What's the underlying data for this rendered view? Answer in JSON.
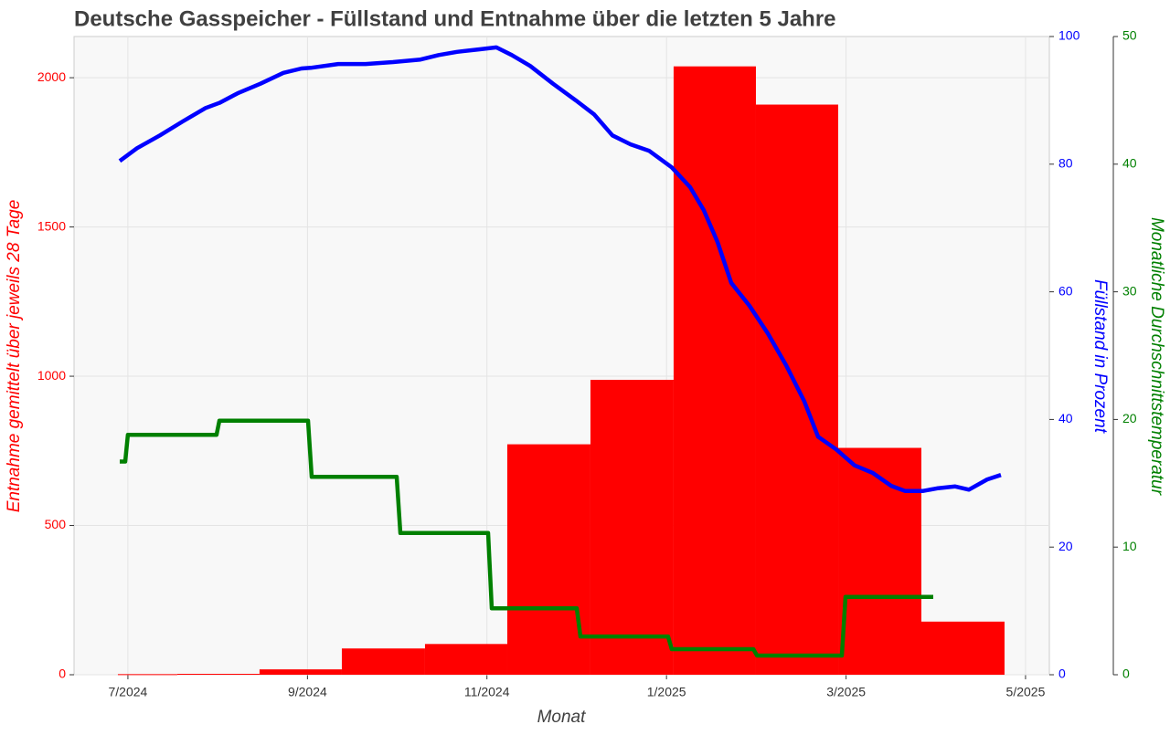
{
  "chart_data": {
    "type": "combo",
    "title": "Deutsche Gasspeicher - Füllstand und Entnahme über die letzten 5 Jahre",
    "xlabel": "Monat",
    "ylabel": "Entnahme gemittelt über jeweils 28 Tage",
    "y2label": "Füllstand in Prozent",
    "y3label": "Monatliche Durchschnittstemperatur",
    "xlim": [
      2024.45,
      2025.3554
    ],
    "xticks": [
      {
        "value": 2024.5,
        "label": "7/2024"
      },
      {
        "value": 2024.6667,
        "label": "9/2024"
      },
      {
        "value": 2024.8333,
        "label": "11/2024"
      },
      {
        "value": 2025.0,
        "label": "1/2025"
      },
      {
        "value": 2025.1667,
        "label": "3/2025"
      },
      {
        "value": 2025.3333,
        "label": "5/2025"
      }
    ],
    "ylim": [
      0,
      2138
    ],
    "yticks": [
      0,
      500,
      1000,
      1500,
      2000
    ],
    "ycolor": "#ff0000",
    "y2lim": [
      0,
      100
    ],
    "y2ticks": [
      0,
      20,
      40,
      60,
      80,
      100
    ],
    "y2color": "#0000ff",
    "y3lim": [
      0,
      50
    ],
    "y3ticks": [
      0,
      10,
      20,
      30,
      40,
      50
    ],
    "y3color": "#008000",
    "grid": true,
    "series": [
      {
        "type": "histogram",
        "axis": "y",
        "color": "#ff0000",
        "bins": [
          2024.4907,
          2024.5458,
          2024.6222,
          2024.6986,
          2024.7758,
          2024.8522,
          2024.9294,
          2025.0066,
          2025.083,
          2025.1594,
          2025.2366,
          2025.3138
        ],
        "values": [
          2,
          3,
          18,
          88,
          103,
          772,
          988,
          2038,
          1910,
          760,
          178
        ]
      },
      {
        "type": "line",
        "axis": "y2",
        "color": "#0000ff",
        "x": [
          2024.4924,
          2024.5085,
          2024.5297,
          2024.5509,
          2024.5721,
          2024.5849,
          2024.6018,
          2024.623,
          2024.6443,
          2024.6612,
          2024.6697,
          2024.6952,
          2024.7206,
          2024.7461,
          2024.7716,
          2024.7885,
          2024.8055,
          2024.8267,
          2024.842,
          2024.8564,
          2024.8734,
          2024.8946,
          2024.9158,
          2024.9328,
          2024.9498,
          2024.9667,
          2024.9837,
          2025.0049,
          2025.0219,
          2025.0346,
          2025.0474,
          2025.0601,
          2025.0771,
          2025.094,
          2025.111,
          2025.128,
          2025.1407,
          2025.1577,
          2025.1746,
          2025.1916,
          2025.2086,
          2025.2213,
          2025.2383,
          2025.251,
          2025.268,
          2025.2807,
          2025.2977,
          2025.3104
        ],
        "values": [
          80.5,
          82.5,
          84.5,
          86.7,
          88.8,
          89.6,
          91.1,
          92.6,
          94.3,
          95.0,
          95.1,
          95.7,
          95.7,
          96.0,
          96.4,
          97.1,
          97.6,
          98.0,
          98.3,
          97.1,
          95.4,
          92.6,
          90.0,
          87.8,
          84.5,
          83.1,
          82.1,
          79.5,
          76.4,
          72.8,
          67.8,
          61.4,
          57.8,
          53.5,
          48.5,
          42.8,
          37.3,
          35.3,
          32.8,
          31.6,
          29.6,
          28.8,
          28.8,
          29.2,
          29.5,
          29.0,
          30.6,
          31.3
        ]
      },
      {
        "type": "line",
        "axis": "y3",
        "color": "#008000",
        "x": [
          2024.4924,
          2024.4975,
          2024.5,
          2024.5823,
          2024.5849,
          2024.6672,
          2024.6706,
          2024.7495,
          2024.7529,
          2024.8344,
          2024.8378,
          2024.9167,
          2024.9201,
          2025.0015,
          2025.0049,
          2025.0806,
          2025.084,
          2025.1628,
          2025.1662,
          2025.2476
        ],
        "values": [
          16.7,
          16.7,
          18.8,
          18.8,
          19.9,
          19.9,
          15.5,
          15.5,
          11.1,
          11.1,
          5.2,
          5.2,
          3.0,
          3.0,
          2.0,
          2.0,
          1.5,
          1.5,
          6.1,
          6.1
        ]
      }
    ]
  }
}
